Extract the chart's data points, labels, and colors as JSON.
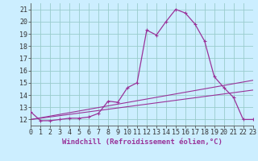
{
  "xlabel": "Windchill (Refroidissement éolien,°C)",
  "xlim": [
    0,
    23
  ],
  "ylim": [
    11.5,
    21.5
  ],
  "xticks": [
    0,
    1,
    2,
    3,
    4,
    5,
    6,
    7,
    8,
    9,
    10,
    11,
    12,
    13,
    14,
    15,
    16,
    17,
    18,
    19,
    20,
    21,
    22,
    23
  ],
  "yticks": [
    12,
    13,
    14,
    15,
    16,
    17,
    18,
    19,
    20,
    21
  ],
  "bg_color": "#cceeff",
  "line_color": "#993399",
  "grid_color": "#99cccc",
  "line1_x": [
    0,
    1,
    2,
    3,
    4,
    5,
    6,
    7,
    8,
    9,
    10,
    11,
    12,
    13,
    14,
    15,
    16,
    17,
    18,
    19,
    20,
    21,
    22,
    23
  ],
  "line1_y": [
    12.6,
    11.9,
    11.9,
    12.0,
    12.1,
    12.1,
    12.2,
    12.5,
    13.5,
    13.4,
    14.6,
    15.0,
    19.3,
    18.9,
    20.0,
    21.0,
    20.7,
    19.8,
    18.4,
    15.5,
    14.6,
    13.8,
    12.0,
    12.0
  ],
  "line2_x": [
    0,
    23
  ],
  "line2_y": [
    12.0,
    15.2
  ],
  "line3_x": [
    0,
    23
  ],
  "line3_y": [
    12.0,
    14.4
  ],
  "xlabel_color": "#993399",
  "xlabel_fontsize": 6.5,
  "tick_fontsize": 6.0
}
